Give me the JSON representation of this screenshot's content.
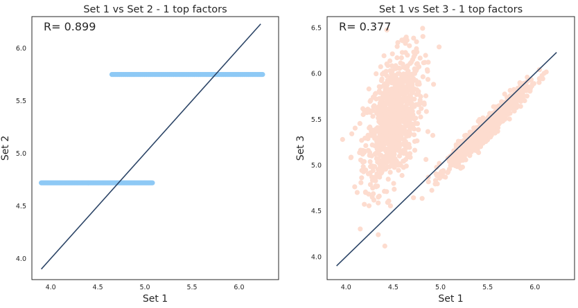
{
  "colors": {
    "background": "#ffffff",
    "frame": "#262626",
    "text": "#262626",
    "fit_line": "#2b4466",
    "set2_points": "#8ec9f5",
    "set3_points": "#fddccf"
  },
  "chart_data": [
    {
      "type": "scatter",
      "title": "Set 1 vs Set 2 - 1 top factors",
      "xlabel": "Set 1",
      "ylabel": "Set 2",
      "annotation": "R= 0.899",
      "xlim": [
        3.8,
        6.42
      ],
      "ylim": [
        3.8,
        6.3
      ],
      "xticks": [
        "4.0",
        "4.5",
        "5.0",
        "5.5",
        "6.0"
      ],
      "yticks": [
        "4.0",
        "4.5",
        "5.0",
        "5.5",
        "6.0"
      ],
      "grid": false,
      "series": [
        {
          "kind": "points",
          "clusters": [
            {
              "x_range": [
                3.9,
                5.08
              ],
              "y": 4.72
            },
            {
              "x_range": [
                4.65,
                6.25
              ],
              "y": 5.75
            }
          ]
        },
        {
          "kind": "line",
          "x": [
            3.9,
            6.23
          ],
          "y": [
            3.9,
            6.23
          ]
        }
      ]
    },
    {
      "type": "scatter",
      "title": "Set 1 vs Set 3 - 1 top factors",
      "xlabel": "Set 1",
      "ylabel": "Set 3",
      "annotation": "R= 0.377",
      "xlim": [
        3.8,
        6.42
      ],
      "ylim": [
        3.75,
        6.62
      ],
      "xticks": [
        "4.0",
        "4.5",
        "5.0",
        "5.5",
        "6.0"
      ],
      "yticks": [
        "4.0",
        "4.5",
        "5.0",
        "5.5",
        "6.0",
        "6.5"
      ],
      "grid": false,
      "series": [
        {
          "kind": "points",
          "clusters": [
            {
              "x_center": 4.5,
              "y_center": 5.5,
              "x_spread": 0.28,
              "y_spread": 0.32,
              "slope": 1.1
            },
            {
              "x_center": 5.5,
              "y_center": 5.42,
              "x_spread": 0.38,
              "y_spread": 0.06,
              "slope": 1.0
            }
          ]
        },
        {
          "kind": "line",
          "x": [
            3.9,
            6.23
          ],
          "y": [
            3.9,
            6.23
          ]
        }
      ]
    }
  ]
}
